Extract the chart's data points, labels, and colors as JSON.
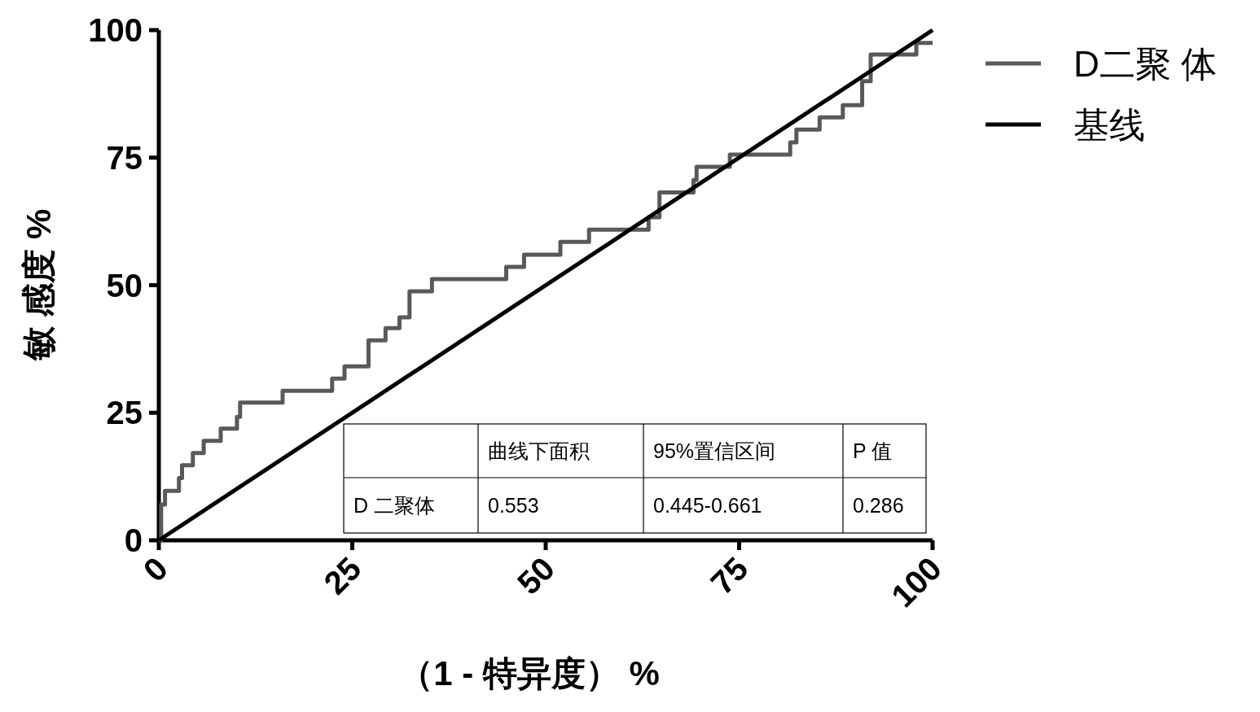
{
  "chart_data": {
    "type": "line",
    "xlabel": "（1 - 特异度） %",
    "ylabel": "敏 感度 %",
    "xlim": [
      0,
      100
    ],
    "ylim": [
      0,
      100
    ],
    "xticks": [
      0,
      25,
      50,
      75,
      100
    ],
    "yticks": [
      0,
      25,
      50,
      75,
      100
    ],
    "grid": false,
    "legend": "top right",
    "marker": "none",
    "line_style": "solid",
    "series": [
      {
        "name": "D二聚 体",
        "type": "step",
        "color": "#595959",
        "x": [
          0,
          0.3,
          0.8,
          2.6,
          3.0,
          4.4,
          5.8,
          8.0,
          10.1,
          10.5,
          16.0,
          22.4,
          24.0,
          27.1,
          29.3,
          31.1,
          32.4,
          35.3,
          44.9,
          47.2,
          51.9,
          55.6,
          63.3,
          64.7,
          69.1,
          69.5,
          73.8,
          81.6,
          82.4,
          85.4,
          88.4,
          90.9,
          92.0,
          97.9,
          100
        ],
        "values": [
          0,
          7.0,
          9.7,
          12.2,
          14.7,
          17.1,
          19.5,
          21.9,
          24.2,
          27.0,
          29.3,
          31.7,
          34.1,
          39.2,
          41.6,
          43.7,
          48.8,
          51.2,
          53.6,
          56.0,
          58.5,
          60.9,
          63.3,
          68.2,
          70.6,
          73.2,
          75.6,
          78.0,
          80.5,
          82.9,
          85.3,
          90.0,
          95.2,
          97.5,
          97.5
        ]
      },
      {
        "name": "基线",
        "color": "#000000",
        "x": [
          0,
          100
        ],
        "values": [
          0,
          100
        ]
      }
    ],
    "annotations": [
      "曲线下面积",
      "95%置信区间",
      "P  值",
      "D 二聚体",
      "0.553",
      "0.445-0.661",
      "0.286"
    ]
  }
}
